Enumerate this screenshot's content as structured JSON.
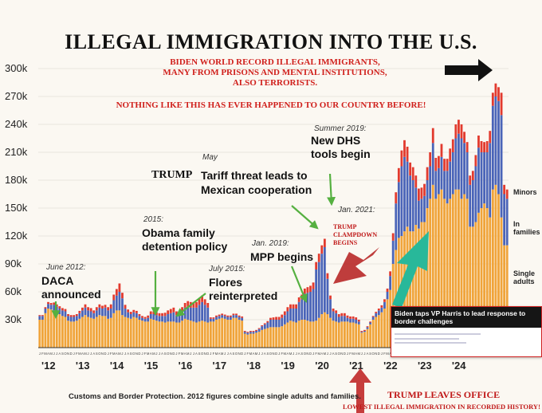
{
  "title": "ILLEGAL IMMIGRATION INTO THE U.S.",
  "subtitle_lines": [
    "BIDEN WORLD RECORD ILLEGAL IMMIGRANTS,",
    "MANY FROM PRISONS AND MENTAL INSTITUTIONS,",
    "ALSO TERRORISTS."
  ],
  "subtitle2": "NOTHING LIKE THIS HAS EVER HAPPENED TO OUR COUNTRY BEFORE!",
  "annotations": {
    "daca_date": "June 2012:",
    "daca_text": "DACA announced",
    "obama_date": "2015:",
    "obama_text": "Obama family detention policy",
    "flores_date": "July 2015:",
    "flores_text": "Flores reinterpreted",
    "mpp_date": "Jan. 2019:",
    "mpp_text": "MPP begins",
    "tariff_date": "May",
    "tariff_trump": "TRUMP",
    "tariff_text_1": "Tariff threat leads to",
    "tariff_text_2": "Mexican cooperation",
    "dhs_date": "Summer 2019:",
    "dhs_text_1": "New DHS",
    "dhs_text_2": "tools begin",
    "clampdown_date": "Jan. 2021:",
    "clampdown_text": "TRUMP CLAMPDOWN BEGINS",
    "trump_leaves": "TRUMP LEAVES OFFICE",
    "lowest": "LOWEST ILLEGAL IMMIGRATION IN RECORDED HISTORY!"
  },
  "legend": {
    "minors": "Minors",
    "families": "In families",
    "single": "Single adults"
  },
  "source": "Customs and Border Protection. 2012 figures combine single adults and families.",
  "inset": {
    "headline": "Biden taps VP Harris to lead response to border challenges"
  },
  "colors": {
    "single": "#f0a43a",
    "families": "#4a64b8",
    "minors": "#e23a2e",
    "accent_red": "#d0201c",
    "teal_arrow": "#28b89a",
    "dark_red_arrow": "#b82828"
  },
  "chart_data": {
    "type": "bar",
    "stacked": true,
    "ylim": [
      0,
      300000
    ],
    "yticks": [
      30000,
      60000,
      90000,
      120000,
      150000,
      180000,
      210000,
      240000,
      270000,
      300000
    ],
    "ytick_labels": [
      "30k",
      "60k",
      "90k",
      "120k",
      "150k",
      "180k",
      "210k",
      "240k",
      "270k",
      "300k"
    ],
    "year_labels": [
      "'12",
      "'13",
      "'14",
      "'15",
      "'16",
      "'17",
      "'18",
      "'19",
      "'20",
      "'21",
      "'22",
      "'23",
      "'24"
    ],
    "month_letters": [
      "J",
      "F",
      "M",
      "A",
      "M",
      "J",
      "J",
      "A",
      "S",
      "O",
      "N",
      "D"
    ],
    "x_start": "2012-01",
    "series": [
      {
        "name": "Single adults",
        "values": [
          30000,
          30000,
          37000,
          42000,
          41000,
          40000,
          38000,
          36000,
          34000,
          33000,
          29000,
          28000,
          28000,
          29000,
          31000,
          33000,
          35000,
          33000,
          32000,
          31000,
          33000,
          35000,
          34000,
          34000,
          31000,
          32000,
          37000,
          40000,
          40000,
          35000,
          33000,
          32000,
          31000,
          33000,
          32000,
          30000,
          29000,
          28000,
          28000,
          31000,
          30000,
          29000,
          28000,
          28000,
          27000,
          28000,
          28000,
          28000,
          27000,
          27000,
          29000,
          31000,
          30000,
          29000,
          28000,
          27000,
          28000,
          29000,
          28000,
          27000,
          28000,
          28000,
          30000,
          31000,
          32000,
          31000,
          30000,
          30000,
          32000,
          32000,
          30000,
          29000,
          15000,
          14000,
          15000,
          15000,
          16000,
          17000,
          19000,
          20000,
          21000,
          22000,
          22000,
          22000,
          22000,
          23000,
          25000,
          27000,
          29000,
          28000,
          27000,
          29000,
          30000,
          30000,
          29000,
          28000,
          28000,
          29000,
          32000,
          36000,
          38000,
          36000,
          32000,
          29000,
          28000,
          27000,
          28000,
          28000,
          28000,
          27000,
          27000,
          26000,
          25000,
          16000,
          17000,
          20000,
          25000,
          30000,
          33000,
          35000,
          38000,
          42000,
          52000,
          62000,
          90000,
          105000,
          118000,
          120000,
          125000,
          130000,
          125000,
          125000,
          132000,
          128000,
          135000,
          135000,
          150000,
          160000,
          175000,
          160000,
          165000,
          170000,
          160000,
          155000,
          160000,
          165000,
          170000,
          170000,
          160000,
          165000,
          160000,
          130000,
          130000,
          135000,
          145000,
          150000,
          155000,
          150000,
          140000,
          170000,
          175000,
          165000,
          140000,
          110000,
          110000
        ]
      },
      {
        "name": "In families",
        "values": [
          4000,
          4000,
          5000,
          5000,
          5000,
          6000,
          6000,
          6000,
          6000,
          6000,
          5000,
          5000,
          5000,
          5000,
          6000,
          7000,
          8000,
          7000,
          7000,
          6000,
          7000,
          8000,
          8000,
          9000,
          9000,
          10000,
          14000,
          16000,
          20000,
          18000,
          9000,
          6000,
          5000,
          5000,
          5000,
          4000,
          3000,
          3000,
          4000,
          5000,
          6000,
          6000,
          6000,
          6000,
          7000,
          8000,
          9000,
          10000,
          8000,
          8000,
          10000,
          12000,
          14000,
          14000,
          15000,
          16000,
          18000,
          20000,
          18000,
          16000,
          3000,
          3000,
          3000,
          3000,
          3000,
          3000,
          3000,
          3000,
          3000,
          3000,
          3000,
          3000,
          2000,
          2000,
          2000,
          2000,
          2000,
          3000,
          4000,
          5000,
          6000,
          8000,
          8000,
          8000,
          8000,
          9000,
          10000,
          12000,
          13000,
          14000,
          15000,
          20000,
          22000,
          28000,
          30000,
          32000,
          35000,
          55000,
          60000,
          65000,
          70000,
          38000,
          20000,
          10000,
          9000,
          6000,
          6000,
          6000,
          4000,
          4000,
          4000,
          4000,
          3000,
          1000,
          1000,
          2000,
          2000,
          3000,
          4000,
          5000,
          5000,
          7000,
          8000,
          15000,
          25000,
          50000,
          60000,
          75000,
          80000,
          70000,
          60000,
          55000,
          40000,
          30000,
          25000,
          28000,
          30000,
          35000,
          45000,
          30000,
          28000,
          35000,
          30000,
          35000,
          40000,
          45000,
          55000,
          60000,
          65000,
          55000,
          50000,
          45000,
          50000,
          60000,
          70000,
          60000,
          55000,
          60000,
          80000,
          90000,
          95000,
          100000,
          110000,
          55000,
          50000,
          50000
        ]
      },
      {
        "name": "Minors",
        "values": [
          1000,
          1000,
          1500,
          2000,
          2000,
          2500,
          2500,
          2500,
          2500,
          2500,
          2000,
          2000,
          2000,
          2000,
          2500,
          3000,
          3500,
          3500,
          3500,
          3000,
          3500,
          3500,
          3000,
          3000,
          3500,
          4500,
          6000,
          7000,
          9000,
          6000,
          4000,
          3000,
          2500,
          2500,
          2500,
          2000,
          2000,
          2000,
          2500,
          3000,
          3000,
          3000,
          3000,
          3000,
          3500,
          4000,
          4500,
          5000,
          4000,
          4000,
          4500,
          5000,
          6000,
          6000,
          6000,
          6000,
          7000,
          7000,
          6000,
          5000,
          1500,
          1500,
          1500,
          1500,
          1500,
          1500,
          1500,
          1500,
          1500,
          1500,
          1500,
          1500,
          1000,
          1000,
          1000,
          1000,
          1000,
          1000,
          1000,
          1200,
          1500,
          2000,
          2500,
          3000,
          3000,
          3500,
          4000,
          4500,
          4500,
          4500,
          4500,
          5000,
          5000,
          5500,
          6000,
          6500,
          7000,
          8000,
          9000,
          9000,
          9000,
          6000,
          4000,
          3000,
          3000,
          3000,
          3000,
          3000,
          2500,
          2500,
          2500,
          2500,
          2000,
          1000,
          1000,
          1000,
          1000,
          1000,
          1500,
          2000,
          2500,
          3000,
          3500,
          5000,
          8000,
          12000,
          15000,
          17000,
          18000,
          16000,
          14000,
          14000,
          13000,
          13000,
          12000,
          13000,
          14000,
          15000,
          16000,
          14000,
          13000,
          14000,
          13000,
          13000,
          14000,
          14000,
          15000,
          15000,
          15000,
          12000,
          11000,
          10000,
          10000,
          12000,
          13000,
          12000,
          11000,
          12000,
          13000,
          14000,
          14000,
          15000,
          24000,
          10000,
          10000,
          10000
        ]
      }
    ]
  }
}
